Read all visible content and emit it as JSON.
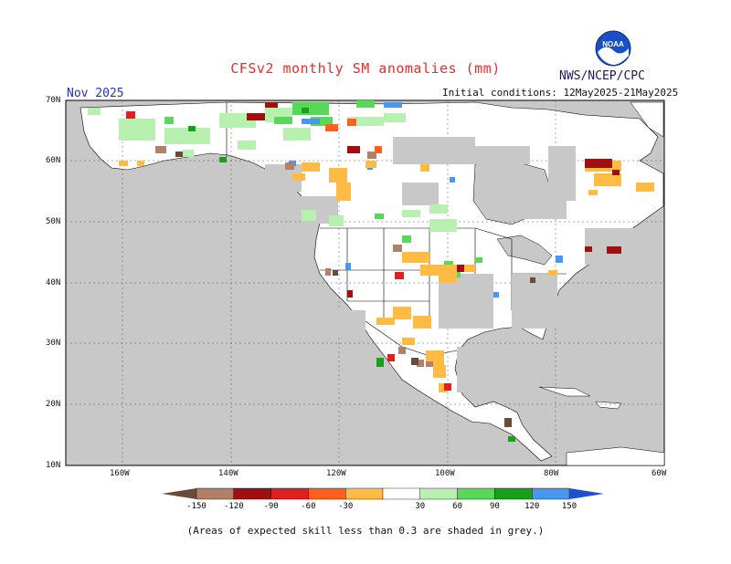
{
  "header": {
    "title": "CFSv2 monthly SM anomalies (mm)",
    "agency": "NWS/NCEP/CPC",
    "month": "Nov 2025",
    "initial_conditions": "Initial conditions: 12May2025-21May2025"
  },
  "lat_labels": [
    "70N",
    "60N",
    "50N",
    "40N",
    "30N",
    "20N",
    "10N"
  ],
  "lon_labels": [
    "160W",
    "140W",
    "120W",
    "100W",
    "80W",
    "60W"
  ],
  "colorbar": {
    "labels": [
      "-150",
      "-120",
      "-90",
      "-60",
      "-30",
      "30",
      "60",
      "90",
      "120",
      "150"
    ],
    "colors": [
      "#6b4a3c",
      "#b08068",
      "#a01010",
      "#e02020",
      "#ff6020",
      "#ffbb44",
      "#ffffff",
      "#b8f0b0",
      "#58d858",
      "#18a018",
      "#4a98ee",
      "#2050d0"
    ]
  },
  "footnote": "(Areas of expected skill less than 0.3 are shaded in grey.)"
}
